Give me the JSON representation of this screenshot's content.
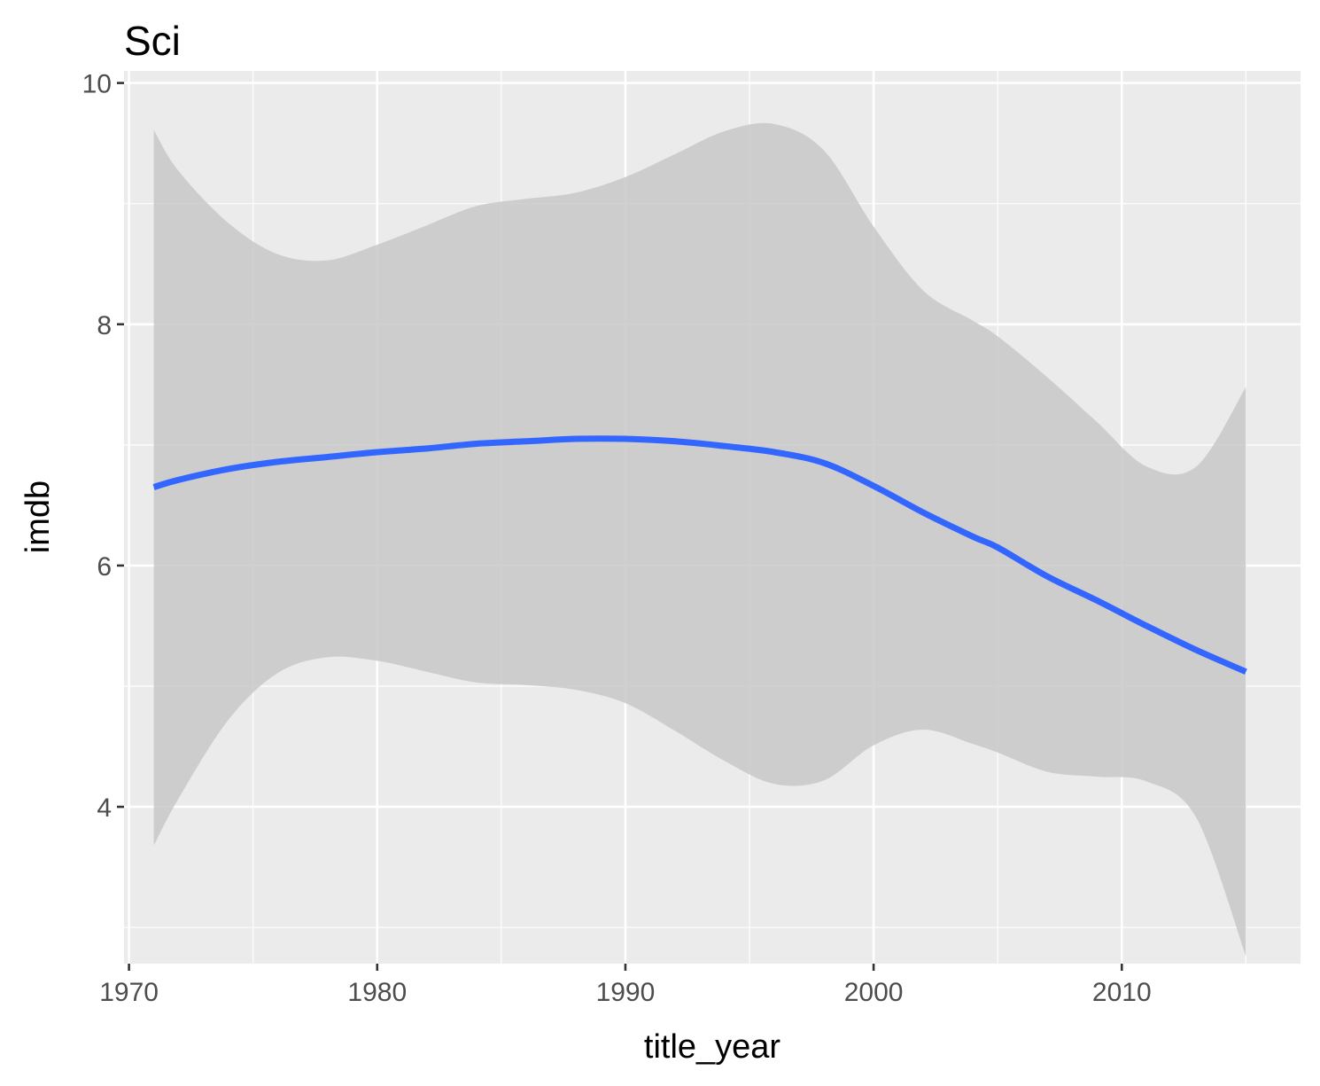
{
  "chart_data": {
    "type": "line",
    "title": "Sci",
    "xlabel": "title_year",
    "ylabel": "imdb",
    "xlim": [
      1969.8,
      2017.2
    ],
    "ylim": [
      2.7,
      10.1
    ],
    "x_ticks": [
      1970,
      1980,
      1990,
      2000,
      2010
    ],
    "y_ticks": [
      4,
      6,
      8,
      10
    ],
    "x_tick_labels": [
      "1970",
      "1980",
      "1990",
      "2000",
      "2010"
    ],
    "y_tick_labels": [
      "4",
      "6",
      "8",
      "10"
    ],
    "grid": true,
    "legend": "none",
    "colors": {
      "line": "#3366ff",
      "ribbon": "#c8c8c8",
      "panel": "#ebebeb",
      "grid": "#ffffff",
      "tick": "#333333"
    },
    "series": [
      {
        "x": [
          1971,
          1972,
          1974,
          1976,
          1978,
          1980,
          1982,
          1984,
          1986,
          1988,
          1990,
          1992,
          1994,
          1996,
          1998,
          2000,
          2002,
          2004,
          2005,
          2007,
          2009,
          2011,
          2013,
          2015
        ],
        "y": [
          6.65,
          6.71,
          6.8,
          6.86,
          6.9,
          6.94,
          6.97,
          7.01,
          7.03,
          7.05,
          7.05,
          7.03,
          6.99,
          6.94,
          6.85,
          6.66,
          6.44,
          6.24,
          6.15,
          5.91,
          5.71,
          5.5,
          5.3,
          5.12
        ],
        "lower": [
          3.68,
          4.07,
          4.72,
          5.11,
          5.24,
          5.21,
          5.12,
          5.03,
          5.01,
          4.97,
          4.86,
          4.63,
          4.38,
          4.19,
          4.22,
          4.51,
          4.64,
          4.52,
          4.45,
          4.29,
          4.25,
          4.21,
          3.91,
          2.76
        ],
        "upper": [
          9.61,
          9.27,
          8.84,
          8.58,
          8.53,
          8.66,
          8.82,
          8.98,
          9.04,
          9.09,
          9.22,
          9.41,
          9.6,
          9.66,
          9.44,
          8.81,
          8.28,
          8.03,
          7.9,
          7.56,
          7.19,
          6.82,
          6.82,
          7.48
        ]
      }
    ]
  }
}
